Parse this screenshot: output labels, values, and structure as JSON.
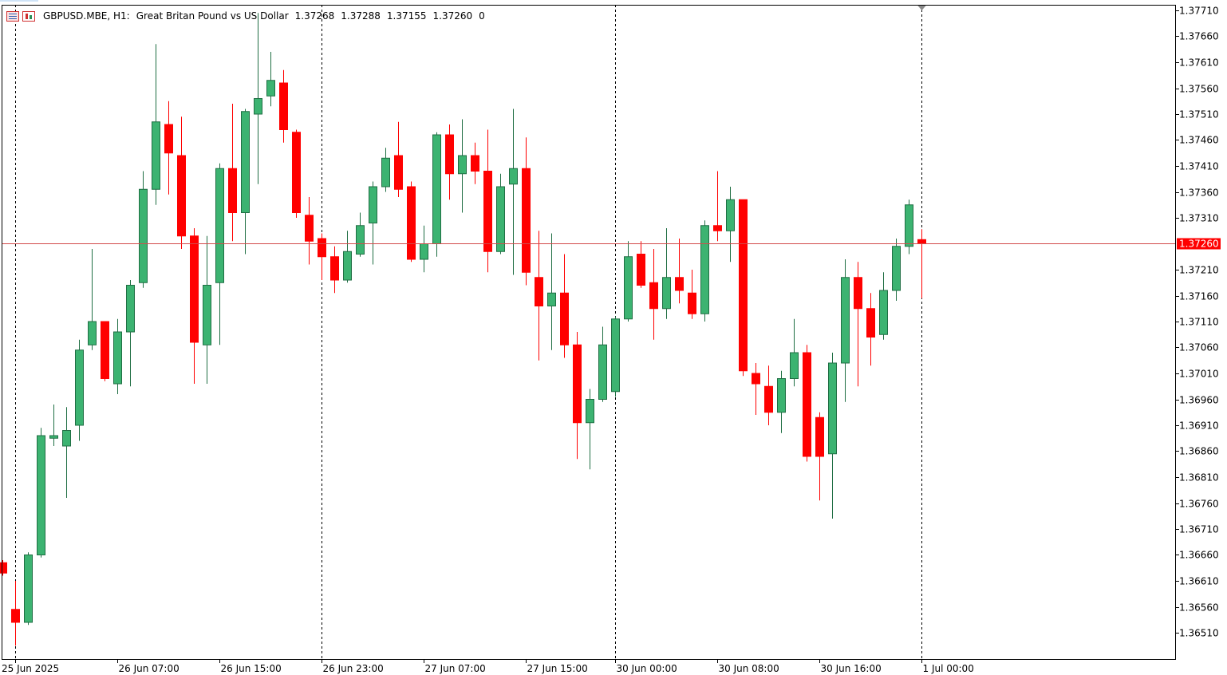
{
  "header": {
    "symbol": "GBPUSD.MBE, H1:",
    "description": "Great Britan Pound vs US Dollar",
    "open": "1.37268",
    "high": "1.37288",
    "low": "1.37155",
    "close": "1.37260",
    "extra": "0",
    "icons": [
      "list-icon",
      "chart-icon"
    ]
  },
  "colors": {
    "bull": "#3cb371",
    "bull_outline": "#1f6e43",
    "bear": "#ff0000",
    "bid_line": "#d24b4b",
    "grid": "#000000",
    "axis": "#000000",
    "price_tag_bg": "#ff0000",
    "price_tag_text": "#ffffff"
  },
  "chart_data": {
    "type": "candlestick",
    "symbol": "GBPUSD.MBE",
    "timeframe": "H1",
    "ylim": [
      1.36465,
      1.3772
    ],
    "y_ticks": [
      "1.37710",
      "1.37660",
      "1.37610",
      "1.37560",
      "1.37510",
      "1.37460",
      "1.37410",
      "1.37360",
      "1.37310",
      "1.37210",
      "1.37160",
      "1.37110",
      "1.37060",
      "1.37010",
      "1.36960",
      "1.36910",
      "1.36860",
      "1.36810",
      "1.36760",
      "1.36710",
      "1.36660",
      "1.36610",
      "1.36560",
      "1.36510"
    ],
    "x_labels": [
      {
        "text": "25 Jun 2025",
        "bar": 1
      },
      {
        "text": "26 Jun 07:00",
        "bar": 9
      },
      {
        "text": "26 Jun 15:00",
        "bar": 17
      },
      {
        "text": "26 Jun 23:00",
        "bar": 25
      },
      {
        "text": "27 Jun 07:00",
        "bar": 33
      },
      {
        "text": "27 Jun 15:00",
        "bar": 41
      },
      {
        "text": "30 Jun 00:00",
        "bar": 48
      },
      {
        "text": "30 Jun 08:00",
        "bar": 56
      },
      {
        "text": "30 Jun 16:00",
        "bar": 64
      },
      {
        "text": "1 Jul 00:00",
        "bar": 72
      }
    ],
    "period_separators_bar": [
      1,
      25,
      48,
      72
    ],
    "current_price": "1.37260",
    "candles": [
      {
        "o": 1.36645,
        "h": 1.3665,
        "l": 1.3662,
        "c": 1.36625
      },
      {
        "o": 1.36555,
        "h": 1.3661,
        "l": 1.36485,
        "c": 1.3653
      },
      {
        "o": 1.3653,
        "h": 1.36665,
        "l": 1.36525,
        "c": 1.3666
      },
      {
        "o": 1.3666,
        "h": 1.36905,
        "l": 1.36655,
        "c": 1.3689
      },
      {
        "o": 1.36885,
        "h": 1.3695,
        "l": 1.3687,
        "c": 1.3689
      },
      {
        "o": 1.3687,
        "h": 1.36945,
        "l": 1.3677,
        "c": 1.369
      },
      {
        "o": 1.3691,
        "h": 1.37075,
        "l": 1.3688,
        "c": 1.37055
      },
      {
        "o": 1.37065,
        "h": 1.3725,
        "l": 1.37055,
        "c": 1.3711
      },
      {
        "o": 1.3711,
        "h": 1.3711,
        "l": 1.36995,
        "c": 1.37
      },
      {
        "o": 1.3699,
        "h": 1.37115,
        "l": 1.3697,
        "c": 1.3709
      },
      {
        "o": 1.3709,
        "h": 1.3719,
        "l": 1.36985,
        "c": 1.3718
      },
      {
        "o": 1.37185,
        "h": 1.374,
        "l": 1.37175,
        "c": 1.37365
      },
      {
        "o": 1.37365,
        "h": 1.37645,
        "l": 1.37335,
        "c": 1.37495
      },
      {
        "o": 1.3749,
        "h": 1.37535,
        "l": 1.37355,
        "c": 1.37435
      },
      {
        "o": 1.3743,
        "h": 1.37505,
        "l": 1.3725,
        "c": 1.37275
      },
      {
        "o": 1.37275,
        "h": 1.3729,
        "l": 1.3699,
        "c": 1.3707
      },
      {
        "o": 1.37065,
        "h": 1.37275,
        "l": 1.3699,
        "c": 1.3718
      },
      {
        "o": 1.37185,
        "h": 1.37415,
        "l": 1.37065,
        "c": 1.37405
      },
      {
        "o": 1.37405,
        "h": 1.3753,
        "l": 1.37265,
        "c": 1.3732
      },
      {
        "o": 1.3732,
        "h": 1.3752,
        "l": 1.3724,
        "c": 1.37515
      },
      {
        "o": 1.3751,
        "h": 1.37705,
        "l": 1.37375,
        "c": 1.3754
      },
      {
        "o": 1.37545,
        "h": 1.3763,
        "l": 1.37525,
        "c": 1.37575
      },
      {
        "o": 1.3757,
        "h": 1.37595,
        "l": 1.37455,
        "c": 1.3748
      },
      {
        "o": 1.37475,
        "h": 1.3748,
        "l": 1.3731,
        "c": 1.3732
      },
      {
        "o": 1.37315,
        "h": 1.3735,
        "l": 1.3722,
        "c": 1.37265
      },
      {
        "o": 1.3727,
        "h": 1.3728,
        "l": 1.3719,
        "c": 1.37235
      },
      {
        "o": 1.37235,
        "h": 1.37255,
        "l": 1.37165,
        "c": 1.3719
      },
      {
        "o": 1.3719,
        "h": 1.37285,
        "l": 1.37185,
        "c": 1.37245
      },
      {
        "o": 1.3724,
        "h": 1.3732,
        "l": 1.37235,
        "c": 1.37295
      },
      {
        "o": 1.373,
        "h": 1.3738,
        "l": 1.3722,
        "c": 1.3737
      },
      {
        "o": 1.3737,
        "h": 1.37445,
        "l": 1.3736,
        "c": 1.37425
      },
      {
        "o": 1.3743,
        "h": 1.37495,
        "l": 1.3735,
        "c": 1.37365
      },
      {
        "o": 1.3737,
        "h": 1.3738,
        "l": 1.37225,
        "c": 1.3723
      },
      {
        "o": 1.3723,
        "h": 1.37295,
        "l": 1.37205,
        "c": 1.3726
      },
      {
        "o": 1.3726,
        "h": 1.37475,
        "l": 1.37235,
        "c": 1.3747
      },
      {
        "o": 1.3747,
        "h": 1.3749,
        "l": 1.37345,
        "c": 1.37395
      },
      {
        "o": 1.37395,
        "h": 1.375,
        "l": 1.3732,
        "c": 1.3743
      },
      {
        "o": 1.3743,
        "h": 1.37455,
        "l": 1.37375,
        "c": 1.374
      },
      {
        "o": 1.374,
        "h": 1.3748,
        "l": 1.37205,
        "c": 1.37245
      },
      {
        "o": 1.37245,
        "h": 1.37395,
        "l": 1.3724,
        "c": 1.3737
      },
      {
        "o": 1.37375,
        "h": 1.3752,
        "l": 1.372,
        "c": 1.37405
      },
      {
        "o": 1.37405,
        "h": 1.37465,
        "l": 1.3718,
        "c": 1.37205
      },
      {
        "o": 1.37195,
        "h": 1.37285,
        "l": 1.37035,
        "c": 1.3714
      },
      {
        "o": 1.3714,
        "h": 1.3728,
        "l": 1.37055,
        "c": 1.37165
      },
      {
        "o": 1.37165,
        "h": 1.3724,
        "l": 1.3704,
        "c": 1.37065
      },
      {
        "o": 1.37065,
        "h": 1.3709,
        "l": 1.36845,
        "c": 1.36915
      },
      {
        "o": 1.36915,
        "h": 1.3698,
        "l": 1.36825,
        "c": 1.3696
      },
      {
        "o": 1.3696,
        "h": 1.371,
        "l": 1.36955,
        "c": 1.37065
      },
      {
        "o": 1.36975,
        "h": 1.3712,
        "l": 1.36965,
        "c": 1.37115
      },
      {
        "o": 1.37115,
        "h": 1.37265,
        "l": 1.3711,
        "c": 1.37235
      },
      {
        "o": 1.3724,
        "h": 1.37265,
        "l": 1.37175,
        "c": 1.3718
      },
      {
        "o": 1.37185,
        "h": 1.3725,
        "l": 1.37075,
        "c": 1.37135
      },
      {
        "o": 1.37135,
        "h": 1.3729,
        "l": 1.37115,
        "c": 1.37195
      },
      {
        "o": 1.37195,
        "h": 1.3727,
        "l": 1.37145,
        "c": 1.3717
      },
      {
        "o": 1.37165,
        "h": 1.3721,
        "l": 1.37115,
        "c": 1.37125
      },
      {
        "o": 1.37125,
        "h": 1.37305,
        "l": 1.3711,
        "c": 1.37295
      },
      {
        "o": 1.37295,
        "h": 1.374,
        "l": 1.37265,
        "c": 1.37285
      },
      {
        "o": 1.37285,
        "h": 1.3737,
        "l": 1.37225,
        "c": 1.37345
      },
      {
        "o": 1.37345,
        "h": 1.37345,
        "l": 1.37005,
        "c": 1.37015
      },
      {
        "o": 1.3701,
        "h": 1.3703,
        "l": 1.3693,
        "c": 1.3699
      },
      {
        "o": 1.36985,
        "h": 1.37025,
        "l": 1.3691,
        "c": 1.36935
      },
      {
        "o": 1.36935,
        "h": 1.37015,
        "l": 1.36895,
        "c": 1.37
      },
      {
        "o": 1.37,
        "h": 1.37115,
        "l": 1.36985,
        "c": 1.3705
      },
      {
        "o": 1.3705,
        "h": 1.37065,
        "l": 1.3684,
        "c": 1.3685
      },
      {
        "o": 1.36925,
        "h": 1.36935,
        "l": 1.36765,
        "c": 1.3685
      },
      {
        "o": 1.36855,
        "h": 1.3705,
        "l": 1.3673,
        "c": 1.3703
      },
      {
        "o": 1.3703,
        "h": 1.3723,
        "l": 1.36955,
        "c": 1.37195
      },
      {
        "o": 1.37195,
        "h": 1.37225,
        "l": 1.36985,
        "c": 1.37135
      },
      {
        "o": 1.37135,
        "h": 1.37165,
        "l": 1.37025,
        "c": 1.3708
      },
      {
        "o": 1.37085,
        "h": 1.37205,
        "l": 1.37075,
        "c": 1.3717
      },
      {
        "o": 1.3717,
        "h": 1.3727,
        "l": 1.3715,
        "c": 1.37255
      },
      {
        "o": 1.37255,
        "h": 1.37345,
        "l": 1.3724,
        "c": 1.37335
      },
      {
        "o": 1.37268,
        "h": 1.37288,
        "l": 1.37155,
        "c": 1.3726
      }
    ]
  }
}
